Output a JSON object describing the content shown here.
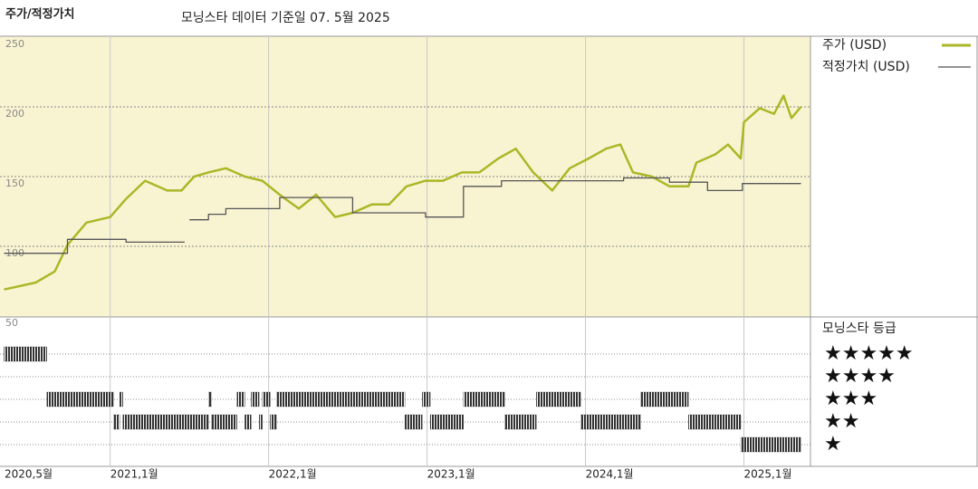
{
  "chart_data": {
    "type": "line",
    "title": "주가/적정가치",
    "subtitle": "모닝스타 데이터 기준일 07. 5월 2025",
    "xlim": [
      2020.333,
      2025.42
    ],
    "xticks": [
      {
        "value": 2020.333,
        "label": "2020,5월"
      },
      {
        "value": 2021,
        "label": "2021,1월"
      },
      {
        "value": 2022,
        "label": "2022,1월"
      },
      {
        "value": 2023,
        "label": "2023,1월"
      },
      {
        "value": 2024,
        "label": "2024,1월"
      },
      {
        "value": 2025,
        "label": "2025,1월"
      }
    ],
    "ylim": [
      50,
      250
    ],
    "yticks": [
      50,
      100,
      150,
      200,
      250
    ],
    "grid": true,
    "series": [
      {
        "name": "주가 (USD)",
        "color": "#abb727",
        "x": [
          2020.33,
          2020.53,
          2020.65,
          2020.73,
          2020.85,
          2021.0,
          2021.1,
          2021.22,
          2021.36,
          2021.45,
          2021.53,
          2021.62,
          2021.73,
          2021.85,
          2021.96,
          2022.07,
          2022.19,
          2022.3,
          2022.42,
          2022.53,
          2022.65,
          2022.76,
          2022.87,
          2022.99,
          2023.1,
          2023.22,
          2023.33,
          2023.45,
          2023.56,
          2023.67,
          2023.79,
          2023.9,
          2024.02,
          2024.13,
          2024.22,
          2024.3,
          2024.42,
          2024.53,
          2024.65,
          2024.7,
          2024.82,
          2024.9,
          2024.98,
          2025.0,
          2025.1,
          2025.19,
          2025.25,
          2025.3,
          2025.36
        ],
        "values": [
          69,
          74,
          82,
          101,
          117,
          121,
          134,
          147,
          140,
          140,
          150,
          153,
          156,
          150,
          147,
          137,
          127,
          137,
          121,
          124,
          130,
          130,
          143,
          147,
          147,
          153,
          153,
          163,
          170,
          153,
          140,
          156,
          163,
          170,
          173,
          153,
          150,
          143,
          143,
          160,
          166,
          173,
          163,
          189,
          199,
          195,
          208,
          192,
          200
        ]
      },
      {
        "name": "적정가치 (USD)",
        "color": "#555555",
        "x": [
          2020.33,
          2020.73,
          2020.73,
          2021.1,
          2021.1,
          2021.47,
          2021.49,
          2021.5,
          2021.62,
          2021.62,
          2021.73,
          2021.73,
          2022.07,
          2022.07,
          2022.53,
          2022.53,
          2022.99,
          2022.99,
          2023.23,
          2023.23,
          2023.47,
          2023.47,
          2024.24,
          2024.24,
          2024.53,
          2024.53,
          2024.77,
          2024.77,
          2024.99,
          2024.99,
          2025.36
        ],
        "values": [
          95,
          95,
          105,
          105,
          103,
          103,
          null,
          119,
          119,
          123,
          123,
          127,
          127,
          135,
          135,
          124,
          124,
          121,
          121,
          143,
          143,
          147,
          147,
          149,
          149,
          146,
          146,
          140,
          140,
          145,
          145
        ]
      }
    ],
    "ratings": {
      "title": "모닝스타 등급",
      "color": "#333333",
      "ticks": [
        {
          "value": 5,
          "label": "★★★★★"
        },
        {
          "value": 4,
          "label": "★★★★"
        },
        {
          "value": 3,
          "label": "★★★"
        },
        {
          "value": 2,
          "label": "★★"
        },
        {
          "value": 1,
          "label": "★"
        }
      ],
      "starts": [
        2020.33,
        2020.6,
        2021.02,
        2021.06,
        2021.08,
        2021.62,
        2021.64,
        2021.8,
        2021.85,
        2021.89,
        2021.94,
        2021.96,
        2022.01,
        2022.05,
        2022.86,
        2022.97,
        2023.02,
        2023.23,
        2023.49,
        2023.69,
        2023.97,
        2024.35,
        2024.65,
        2024.98
      ],
      "ends": [
        2020.6,
        2021.02,
        2021.06,
        2021.08,
        2021.62,
        2021.64,
        2021.8,
        2021.85,
        2021.89,
        2021.94,
        2021.96,
        2022.01,
        2022.05,
        2022.86,
        2022.97,
        2023.02,
        2023.23,
        2023.49,
        2023.69,
        2023.97,
        2024.35,
        2024.65,
        2024.98,
        2025.36
      ],
      "values": [
        5,
        3,
        2,
        3,
        2,
        3,
        2,
        3,
        2,
        3,
        2,
        3,
        2,
        3,
        2,
        3,
        2,
        3,
        2,
        3,
        2,
        3,
        2,
        1
      ]
    }
  }
}
